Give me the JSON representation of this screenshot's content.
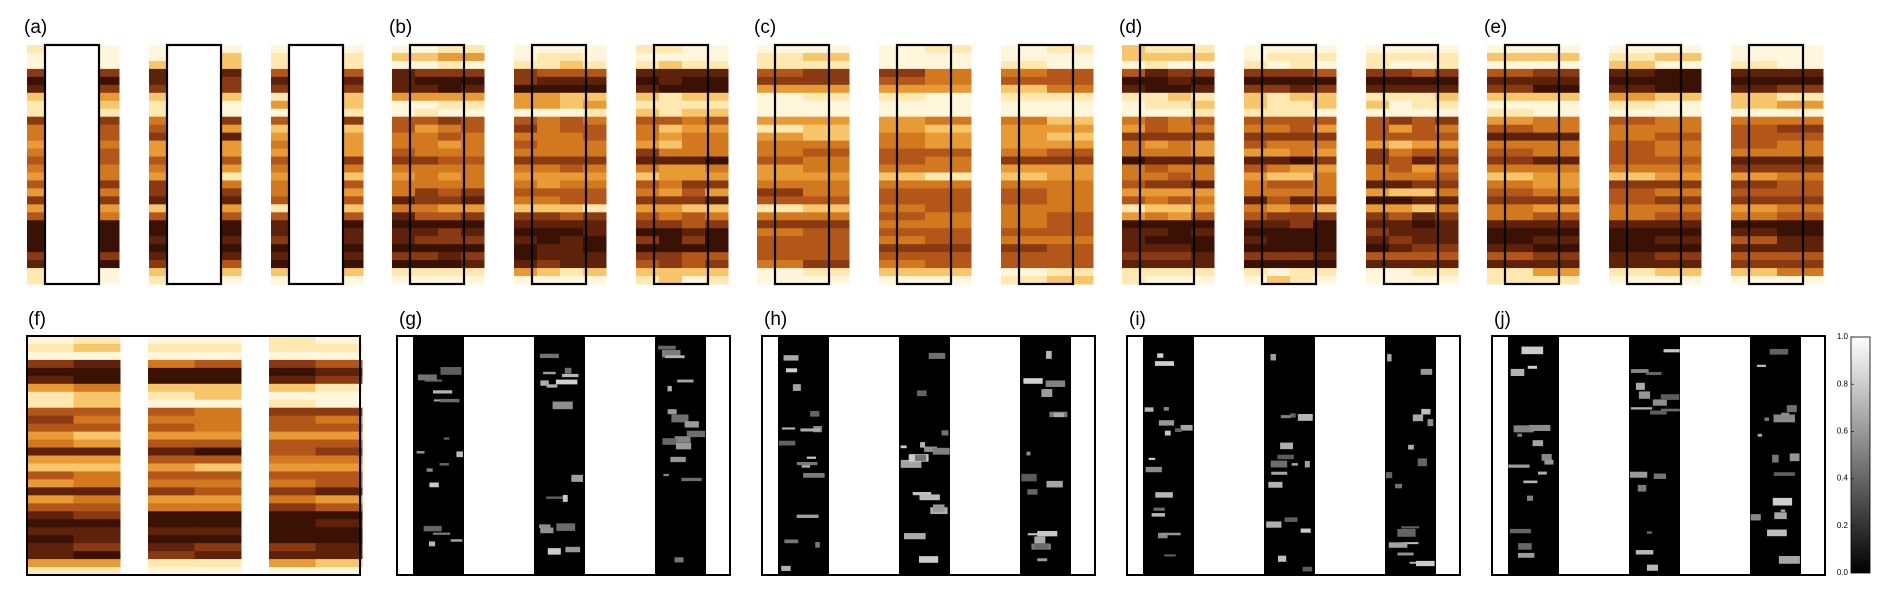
{
  "panels": [
    {
      "label": "(a)"
    },
    {
      "label": "(b)"
    },
    {
      "label": "(c)"
    },
    {
      "label": "(d)"
    },
    {
      "label": "(e)"
    },
    {
      "label": "(f)"
    },
    {
      "label": "(g)"
    },
    {
      "label": "(h)"
    },
    {
      "label": "(i)"
    },
    {
      "label": "(j)"
    }
  ],
  "colorbar": {
    "ticks": [
      {
        "value": 0,
        "label": "0.0"
      },
      0.2,
      0.4,
      0.6,
      0.8,
      {
        "value": 1,
        "label": "1.0"
      }
    ]
  }
}
